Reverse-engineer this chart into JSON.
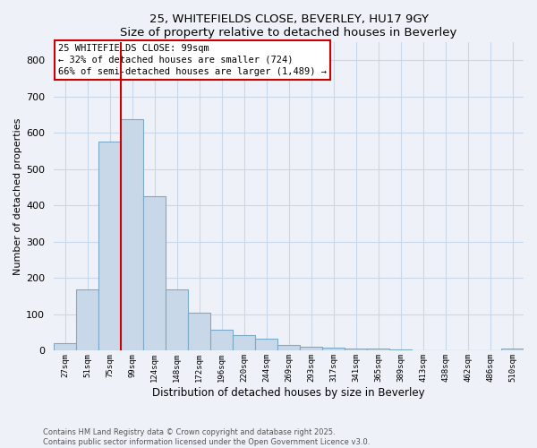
{
  "title": "25, WHITEFIELDS CLOSE, BEVERLEY, HU17 9GY",
  "subtitle": "Size of property relative to detached houses in Beverley",
  "xlabel": "Distribution of detached houses by size in Beverley",
  "ylabel": "Number of detached properties",
  "bar_labels": [
    "27sqm",
    "51sqm",
    "75sqm",
    "99sqm",
    "124sqm",
    "148sqm",
    "172sqm",
    "196sqm",
    "220sqm",
    "244sqm",
    "269sqm",
    "293sqm",
    "317sqm",
    "341sqm",
    "365sqm",
    "389sqm",
    "413sqm",
    "438sqm",
    "462sqm",
    "486sqm",
    "510sqm"
  ],
  "bar_values": [
    20,
    168,
    575,
    638,
    425,
    170,
    105,
    57,
    42,
    33,
    15,
    10,
    8,
    7,
    5,
    3,
    2,
    1,
    0,
    0,
    6
  ],
  "bar_color": "#c8d8e8",
  "bar_edge_color": "#7aaac8",
  "vline_x": 3,
  "vline_color": "#cc0000",
  "annotation_box_text": "25 WHITEFIELDS CLOSE: 99sqm\n← 32% of detached houses are smaller (724)\n66% of semi-detached houses are larger (1,489) →",
  "annotation_fontsize": 7.5,
  "ylim": [
    0,
    850
  ],
  "yticks": [
    0,
    100,
    200,
    300,
    400,
    500,
    600,
    700,
    800
  ],
  "footer": "Contains HM Land Registry data © Crown copyright and database right 2025.\nContains public sector information licensed under the Open Government Licence v3.0.",
  "grid_color": "#c8d8e8",
  "bg_color": "#eef2f8"
}
